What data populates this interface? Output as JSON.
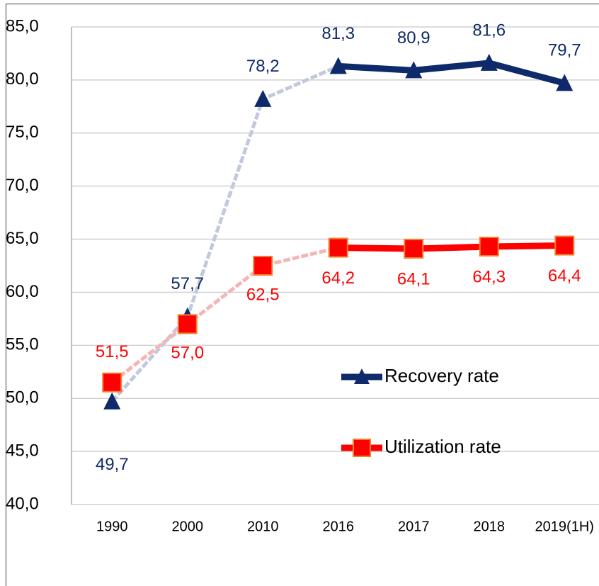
{
  "chart_data": {
    "type": "line",
    "categories": [
      "1990",
      "2000",
      "2010",
      "2016",
      "2017",
      "2018",
      "2019(1H)"
    ],
    "series": [
      {
        "name": "Recovery rate",
        "color": "#0e2a6b",
        "marker": "triangle",
        "values": [
          49.7,
          57.7,
          78.2,
          81.3,
          80.9,
          81.6,
          79.7
        ],
        "value_labels": [
          "49,7",
          "57,7",
          "78,2",
          "81,3",
          "80,9",
          "81,6",
          "79,7"
        ]
      },
      {
        "name": "Utilization rate",
        "color": "#ff0000",
        "marker": "square",
        "values": [
          51.5,
          57.0,
          62.5,
          64.2,
          64.1,
          64.3,
          64.4
        ],
        "value_labels": [
          "51,5",
          "57,0",
          "62,5",
          "64,2",
          "64,1",
          "64,3",
          "64,4"
        ]
      }
    ],
    "ylim": [
      40,
      85
    ],
    "yticks": [
      {
        "value": 40,
        "label": "40,0"
      },
      {
        "value": 45,
        "label": "45,0"
      },
      {
        "value": 50,
        "label": "50,0"
      },
      {
        "value": 55,
        "label": "55,0"
      },
      {
        "value": 60,
        "label": "60,0"
      },
      {
        "value": 65,
        "label": "65,0"
      },
      {
        "value": 70,
        "label": "70,0"
      },
      {
        "value": 75,
        "label": "75,0"
      },
      {
        "value": 80,
        "label": "80,0"
      },
      {
        "value": 85,
        "label": "85,0"
      }
    ],
    "grid": true,
    "legend": "center-right"
  }
}
